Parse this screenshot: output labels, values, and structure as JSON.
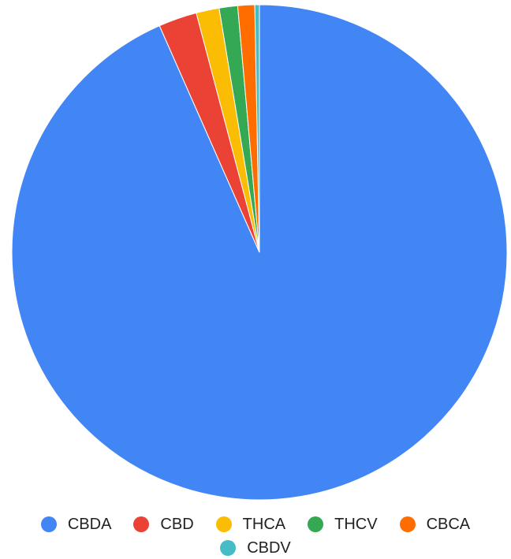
{
  "chart_data": {
    "type": "pie",
    "categories": [
      "CBDA",
      "CBD",
      "THCA",
      "THCV",
      "CBCA",
      "CBDV"
    ],
    "values": [
      93.2,
      2.5,
      1.5,
      1.2,
      1.1,
      0.3
    ],
    "colors": [
      "#4285f4",
      "#ea4335",
      "#fbbc04",
      "#34a853",
      "#ff6d01",
      "#46bdc6"
    ],
    "title": "",
    "legend_position": "bottom"
  }
}
